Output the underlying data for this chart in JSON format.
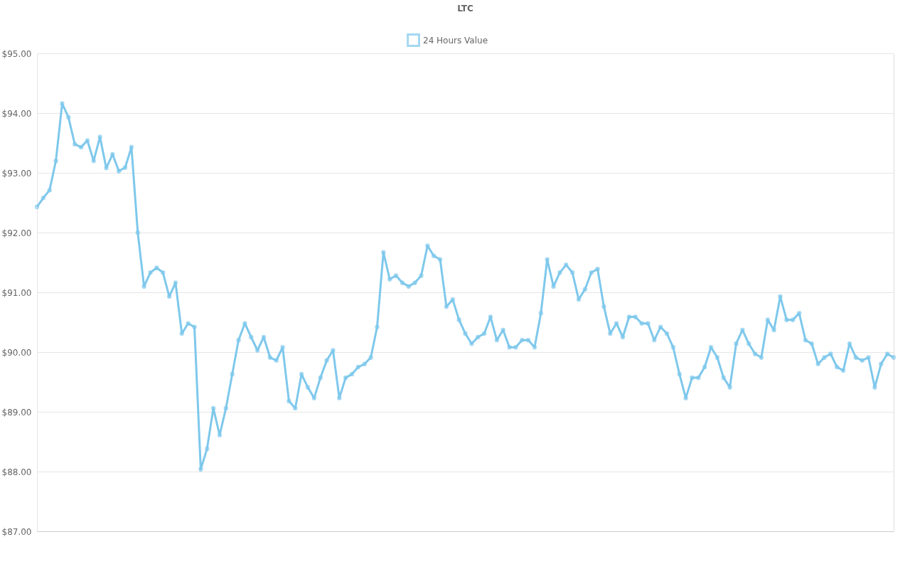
{
  "chart_data": {
    "type": "line",
    "title": "LTC",
    "categories": [
      null,
      null,
      null,
      null,
      null,
      null,
      null,
      null,
      null,
      null,
      null,
      null,
      null,
      null,
      null,
      null,
      null,
      null,
      null,
      null,
      null,
      null,
      null,
      null,
      null,
      null,
      null,
      null,
      null,
      null,
      null,
      null,
      null,
      null,
      null,
      null,
      null,
      null,
      null,
      null,
      null,
      null,
      null,
      null,
      null,
      null,
      null,
      null,
      null,
      null,
      null,
      null,
      null,
      null,
      null,
      null,
      null,
      null,
      null,
      null,
      null,
      null,
      null,
      null,
      null,
      null,
      null,
      null,
      null,
      null,
      null,
      null,
      null,
      null,
      null,
      null,
      null,
      null,
      null,
      null,
      null,
      null,
      null,
      null,
      null,
      null,
      null,
      null,
      null,
      null,
      null,
      null,
      null,
      null,
      null,
      null,
      null,
      null,
      null,
      null,
      null,
      null,
      null,
      null,
      null,
      null,
      null,
      null,
      null,
      null,
      null,
      null,
      null,
      null,
      null,
      null,
      null,
      null,
      null,
      null,
      null,
      null,
      null,
      null,
      null,
      null,
      null,
      null,
      null,
      null,
      null,
      null,
      null,
      null,
      null,
      null,
      null
    ],
    "series": [
      {
        "name": "24 Hours Value",
        "color": "#7ec8ec",
        "values": [
          92.43,
          92.58,
          92.71,
          93.2,
          94.16,
          93.93,
          93.48,
          93.43,
          93.54,
          93.2,
          93.6,
          93.08,
          93.31,
          93.03,
          93.09,
          93.43,
          92.0,
          91.1,
          91.33,
          91.41,
          91.33,
          90.93,
          91.16,
          90.31,
          90.48,
          90.42,
          88.04,
          88.38,
          89.06,
          88.61,
          89.06,
          89.63,
          90.2,
          90.48,
          90.25,
          90.03,
          90.25,
          89.91,
          89.86,
          90.08,
          89.18,
          89.06,
          89.63,
          89.41,
          89.23,
          89.57,
          89.86,
          90.03,
          89.23,
          89.57,
          89.63,
          89.75,
          89.8,
          89.91,
          90.42,
          91.67,
          91.22,
          91.28,
          91.16,
          91.1,
          91.16,
          91.28,
          91.78,
          91.61,
          91.55,
          90.76,
          90.88,
          90.54,
          90.31,
          90.14,
          90.25,
          90.31,
          90.59,
          90.2,
          90.37,
          90.08,
          90.08,
          90.2,
          90.2,
          90.08,
          90.65,
          91.55,
          91.1,
          91.33,
          91.46,
          91.33,
          90.88,
          91.05,
          91.33,
          91.39,
          90.76,
          90.31,
          90.48,
          90.25,
          90.59,
          90.59,
          90.48,
          90.48,
          90.2,
          90.42,
          90.31,
          90.08,
          89.63,
          89.23,
          89.57,
          89.57,
          89.75,
          90.08,
          89.91,
          89.57,
          89.41,
          90.14,
          90.37,
          90.14,
          89.97,
          89.91,
          90.54,
          90.37,
          90.93,
          90.54,
          90.54,
          90.65,
          90.2,
          90.14,
          89.8,
          89.91,
          89.97,
          89.75,
          89.69,
          90.14,
          89.91,
          89.86,
          89.91,
          89.41,
          89.8,
          89.97,
          89.91
        ]
      }
    ],
    "ylim": [
      87,
      95
    ],
    "yticks": [
      {
        "value": 87,
        "label": "$87.00"
      },
      {
        "value": 88,
        "label": "$88.00"
      },
      {
        "value": 89,
        "label": "$89.00"
      },
      {
        "value": 90,
        "label": "$90.00"
      },
      {
        "value": 91,
        "label": "$91.00"
      },
      {
        "value": 92,
        "label": "$92.00"
      },
      {
        "value": 93,
        "label": "$93.00"
      },
      {
        "value": 94,
        "label": "$94.00"
      },
      {
        "value": 95,
        "label": "$95.00"
      }
    ],
    "tick_labels": "y",
    "grid": "y",
    "legend": "top",
    "marker": "cross",
    "line_style": "solid"
  }
}
